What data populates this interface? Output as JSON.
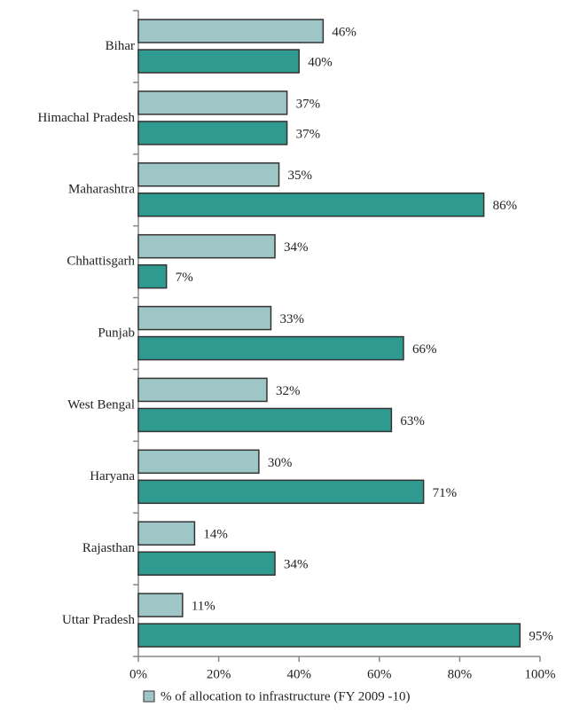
{
  "chart_data": {
    "type": "hbar",
    "categories": [
      "Bihar",
      "Himachal Pradesh",
      "Maharashtra",
      "Chhattisgarh",
      "Punjab",
      "West Bengal",
      "Haryana",
      "Rajasthan",
      "Uttar Pradesh"
    ],
    "series": [
      {
        "name": "% of allocation to infrastructure (FY 2009 -10)",
        "color": "#9fc6c6",
        "values": [
          46,
          37,
          35,
          34,
          33,
          32,
          30,
          14,
          11
        ],
        "value_labels": [
          "46%",
          "37%",
          "35%",
          "34%",
          "33%",
          "32%",
          "30%",
          "14%",
          "11%"
        ]
      },
      {
        "color": "#2e9a90",
        "values": [
          40,
          37,
          86,
          7,
          66,
          63,
          71,
          34,
          95
        ],
        "value_labels": [
          "40%",
          "37%",
          "86%",
          "7%",
          "66%",
          "63%",
          "71%",
          "34%",
          "95%"
        ]
      }
    ],
    "xlim": [
      0,
      100
    ],
    "xticks": [
      {
        "value": 0,
        "label": "0%"
      },
      {
        "value": 20,
        "label": "20%"
      },
      {
        "value": 40,
        "label": "40%"
      },
      {
        "value": 60,
        "label": "60%"
      },
      {
        "value": 80,
        "label": "80%"
      },
      {
        "value": 100,
        "label": "100%"
      }
    ],
    "legend": "bottom"
  }
}
